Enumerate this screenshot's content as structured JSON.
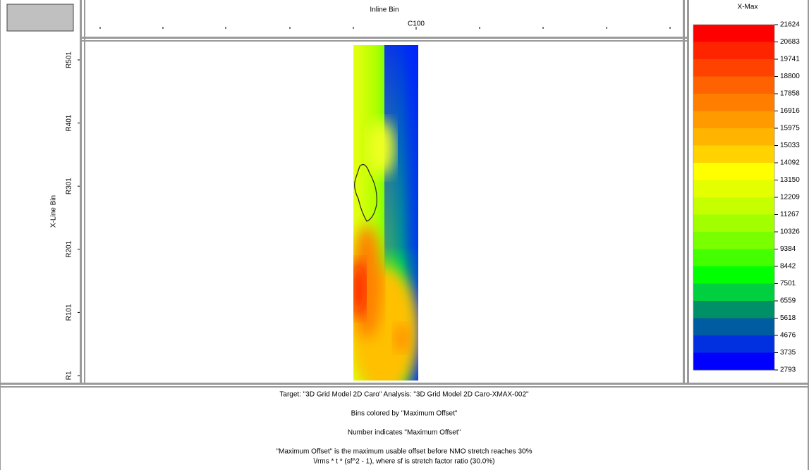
{
  "window": {
    "axis": {
      "x_title": "Inline Bin",
      "x_label": "C100",
      "y_title": "X-Line Bin",
      "y_labels": [
        "R501",
        "R401",
        "R301",
        "R201",
        "R101",
        "R1"
      ]
    },
    "legend": {
      "title": "X-Max",
      "labels": [
        "21624",
        "20683",
        "19741",
        "18800",
        "17858",
        "16916",
        "15975",
        "15033",
        "14092",
        "13150",
        "12209",
        "11267",
        "10326",
        "9384",
        "8442",
        "7501",
        "6559",
        "5618",
        "4676",
        "3735",
        "2793"
      ],
      "colors": [
        "#ff0000",
        "#ff2400",
        "#ff4200",
        "#ff6200",
        "#ff7e00",
        "#ff9a00",
        "#ffb400",
        "#ffd200",
        "#ffff00",
        "#e4ff00",
        "#c6ff00",
        "#a2ff00",
        "#7aff00",
        "#44ff00",
        "#00ff00",
        "#00d040",
        "#009068",
        "#005ca0",
        "#0030e0",
        "#0000ff"
      ]
    },
    "footer": [
      "Target: \"3D Grid Model 2D Caro\" Analysis: \"3D Grid Model 2D Caro-XMAX-002\"",
      "Bins colored by \"Maximum Offset\"",
      "Number indicates \"Maximum Offset\"",
      "\"Maximum Offset\" is the maximum usable offset before NMO stretch reaches 30%",
      "\\/rms * t * (sf^2 - 1), where sf is stretch factor ratio (30.0%)"
    ]
  }
}
